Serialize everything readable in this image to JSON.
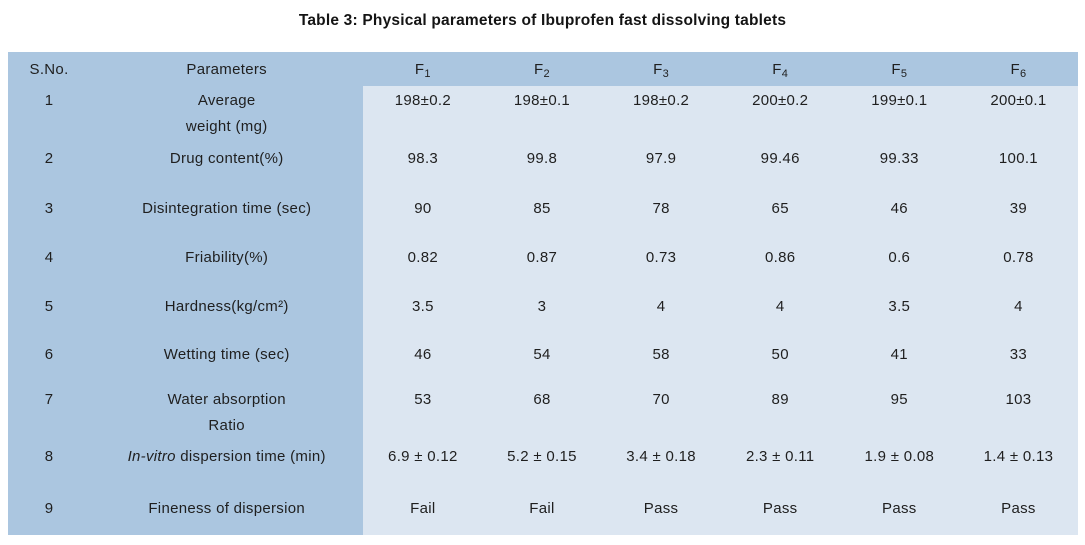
{
  "title": "Table 3: Physical parameters of Ibuprofen fast dissolving tablets",
  "colors": {
    "header_left_bg": "#abc6e0",
    "data_bg": "#dce6f1",
    "text": "#1f1f1f"
  },
  "table": {
    "headers": {
      "sno": "S.No.",
      "parameters": "Parameters",
      "f_base": "F",
      "f_subs": [
        "1",
        "2",
        "3",
        "4",
        "5",
        "6"
      ]
    },
    "rows": [
      {
        "sno": "1",
        "param_line1": "Average",
        "param_line2": "weight (mg)",
        "values": [
          "198±0.2",
          "198±0.1",
          "198±0.2",
          "200±0.2",
          "199±0.1",
          "200±0.1"
        ]
      },
      {
        "sno": "2",
        "param_line1": "Drug content(%)",
        "values": [
          "98.3",
          "99.8",
          "97.9",
          "99.46",
          "99.33",
          "100.1"
        ]
      },
      {
        "sno": "3",
        "param_line1": "Disintegration time (sec)",
        "values": [
          "90",
          "85",
          "78",
          "65",
          "46",
          "39"
        ]
      },
      {
        "sno": "4",
        "param_line1": "Friability(%)",
        "values": [
          "0.82",
          "0.87",
          "0.73",
          "0.86",
          "0.6",
          "0.78"
        ]
      },
      {
        "sno": "5",
        "param_line1": "Hardness(kg/cm²)",
        "values": [
          "3.5",
          "3",
          "4",
          "4",
          "3.5",
          "4"
        ]
      },
      {
        "sno": "6",
        "param_line1": "Wetting time (sec)",
        "values": [
          "46",
          "54",
          "58",
          "50",
          "41",
          "33"
        ]
      },
      {
        "sno": "7",
        "param_line1": "Water absorption",
        "param_line2": "Ratio",
        "values": [
          "53",
          "68",
          "70",
          "89",
          "95",
          "103"
        ]
      },
      {
        "sno": "8",
        "param_italic": "In-vitro",
        "param_rest": " dispersion time (min)",
        "values": [
          "6.9 ± 0.12",
          "5.2 ± 0.15",
          "3.4 ± 0.18",
          "2.3 ± 0.11",
          "1.9 ± 0.08",
          "1.4 ± 0.13"
        ]
      },
      {
        "sno": "9",
        "param_line1": "Fineness of dispersion",
        "values": [
          "Fail",
          "Fail",
          "Pass",
          "Pass",
          "Pass",
          "Pass"
        ]
      }
    ]
  },
  "chart_data": {
    "type": "table",
    "title": "Table 3: Physical parameters of Ibuprofen fast dissolving tablets",
    "columns": [
      "S.No.",
      "Parameters",
      "F1",
      "F2",
      "F3",
      "F4",
      "F5",
      "F6"
    ],
    "rows": [
      [
        "1",
        "Average weight (mg)",
        "198±0.2",
        "198±0.1",
        "198±0.2",
        "200±0.2",
        "199±0.1",
        "200±0.1"
      ],
      [
        "2",
        "Drug content(%)",
        "98.3",
        "99.8",
        "97.9",
        "99.46",
        "99.33",
        "100.1"
      ],
      [
        "3",
        "Disintegration time (sec)",
        "90",
        "85",
        "78",
        "65",
        "46",
        "39"
      ],
      [
        "4",
        "Friability(%)",
        "0.82",
        "0.87",
        "0.73",
        "0.86",
        "0.6",
        "0.78"
      ],
      [
        "5",
        "Hardness(kg/cm²)",
        "3.5",
        "3",
        "4",
        "4",
        "3.5",
        "4"
      ],
      [
        "6",
        "Wetting time (sec)",
        "46",
        "54",
        "58",
        "50",
        "41",
        "33"
      ],
      [
        "7",
        "Water absorption Ratio",
        "53",
        "68",
        "70",
        "89",
        "95",
        "103"
      ],
      [
        "8",
        "In-vitro dispersion time (min)",
        "6.9 ± 0.12",
        "5.2 ± 0.15",
        "3.4 ± 0.18",
        "2.3 ± 0.11",
        "1.9 ± 0.08",
        "1.4 ± 0.13"
      ],
      [
        "9",
        "Fineness of dispersion",
        "Fail",
        "Fail",
        "Pass",
        "Pass",
        "Pass",
        "Pass"
      ]
    ]
  }
}
